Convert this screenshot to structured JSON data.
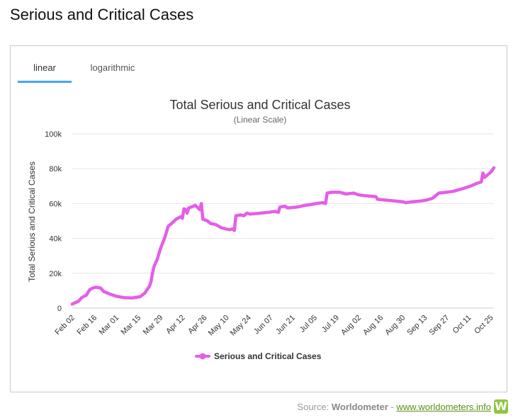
{
  "page": {
    "title": "Serious and Critical Cases"
  },
  "tabs": [
    {
      "label": "linear",
      "active": true
    },
    {
      "label": "logarithmic",
      "active": false
    }
  ],
  "source": {
    "prefix": "Source: ",
    "name": "Worldometer",
    "separator": " - ",
    "link": "www.worldometers.info",
    "logo": "W"
  },
  "colors": {
    "series": "#e55ee8",
    "accent": "#3ea9f5",
    "grid": "#e6e6e6",
    "logo": "#8ec63f"
  },
  "chart_data": {
    "type": "line",
    "title": "Total Serious and Critical Cases",
    "subtitle": "(Linear Scale)",
    "ylabel": "Total Serious and Critical Cases",
    "xlabel": "",
    "ylim": [
      0,
      100000
    ],
    "yticks": [
      0,
      20000,
      40000,
      60000,
      80000,
      100000
    ],
    "ytick_labels": [
      "0",
      "20k",
      "40k",
      "60k",
      "80k",
      "100k"
    ],
    "day_range": [
      0,
      268
    ],
    "xtick_days": [
      0,
      14,
      28,
      42,
      56,
      70,
      84,
      98,
      112,
      126,
      140,
      154,
      168,
      182,
      196,
      210,
      224,
      238,
      252,
      266
    ],
    "xtick_labels": [
      "Feb 02",
      "Feb 16",
      "Mar 01",
      "Mar 15",
      "Mar 29",
      "Apr 12",
      "Apr 26",
      "May 10",
      "May 24",
      "Jun 07",
      "Jun 21",
      "Jul 05",
      "Jul 19",
      "Aug 02",
      "Aug 16",
      "Aug 30",
      "Sep 13",
      "Sep 27",
      "Oct 11",
      "Oct 25"
    ],
    "legend": {
      "position": "bottom-center"
    },
    "series": [
      {
        "name": "Serious and Critical Cases",
        "points": [
          [
            0,
            2300
          ],
          [
            4,
            4000
          ],
          [
            6,
            6000
          ],
          [
            9,
            7500
          ],
          [
            11,
            10500
          ],
          [
            13,
            11500
          ],
          [
            15,
            12000
          ],
          [
            18,
            11500
          ],
          [
            20,
            9500
          ],
          [
            24,
            8000
          ],
          [
            28,
            6800
          ],
          [
            33,
            6000
          ],
          [
            38,
            5800
          ],
          [
            40,
            6100
          ],
          [
            43,
            6500
          ],
          [
            46,
            8500
          ],
          [
            49,
            12500
          ],
          [
            50,
            15000
          ],
          [
            51,
            20000
          ],
          [
            52,
            24000
          ],
          [
            54,
            28000
          ],
          [
            56,
            34000
          ],
          [
            59,
            41000
          ],
          [
            61,
            47000
          ],
          [
            63,
            48500
          ],
          [
            66,
            51000
          ],
          [
            69,
            52500
          ],
          [
            70,
            51500
          ],
          [
            71,
            57000
          ],
          [
            72,
            56500
          ],
          [
            73,
            54500
          ],
          [
            74,
            57500
          ],
          [
            77,
            58500
          ],
          [
            78,
            59000
          ],
          [
            80,
            57500
          ],
          [
            81,
            56500
          ],
          [
            82,
            60000
          ],
          [
            83,
            51000
          ],
          [
            86,
            50000
          ],
          [
            88,
            48500
          ],
          [
            91,
            48000
          ],
          [
            95,
            46000
          ],
          [
            100,
            45000
          ],
          [
            102,
            45500
          ],
          [
            103,
            44500
          ],
          [
            104,
            53000
          ],
          [
            107,
            53500
          ],
          [
            109,
            53000
          ],
          [
            111,
            54500
          ],
          [
            113,
            54000
          ],
          [
            120,
            54500
          ],
          [
            125,
            55000
          ],
          [
            129,
            55500
          ],
          [
            131,
            55000
          ],
          [
            132,
            58000
          ],
          [
            135,
            58500
          ],
          [
            137,
            57500
          ],
          [
            143,
            58000
          ],
          [
            148,
            59000
          ],
          [
            152,
            59500
          ],
          [
            155,
            60000
          ],
          [
            159,
            60500
          ],
          [
            161,
            60000
          ],
          [
            162,
            66000
          ],
          [
            165,
            66500
          ],
          [
            170,
            66500
          ],
          [
            174,
            65500
          ],
          [
            179,
            66000
          ],
          [
            182,
            65000
          ],
          [
            186,
            64500
          ],
          [
            193,
            64000
          ],
          [
            194,
            62500
          ],
          [
            199,
            62000
          ],
          [
            205,
            61500
          ],
          [
            210,
            61000
          ],
          [
            212,
            60500
          ],
          [
            216,
            61000
          ],
          [
            222,
            61500
          ],
          [
            225,
            62000
          ],
          [
            229,
            63000
          ],
          [
            233,
            66000
          ],
          [
            238,
            66500
          ],
          [
            242,
            67000
          ],
          [
            248,
            68500
          ],
          [
            253,
            70000
          ],
          [
            257,
            71500
          ],
          [
            260,
            72500
          ],
          [
            261,
            77500
          ],
          [
            262,
            75000
          ],
          [
            264,
            76500
          ],
          [
            266,
            78000
          ],
          [
            268,
            80500
          ]
        ]
      }
    ]
  }
}
